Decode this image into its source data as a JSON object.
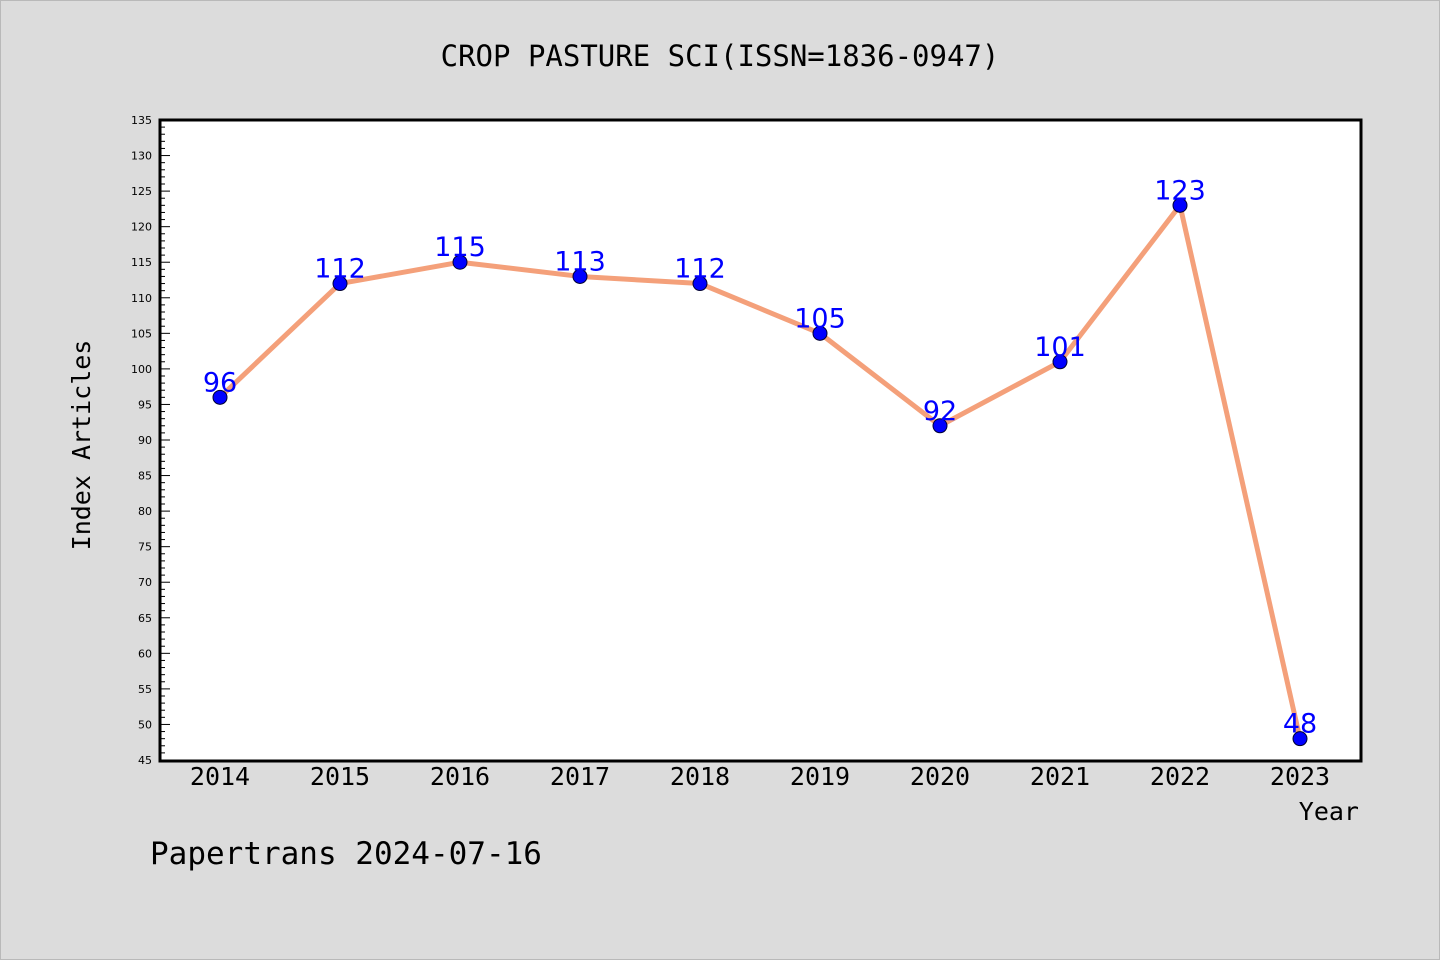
{
  "chart_data": {
    "type": "line",
    "title": "CROP PASTURE SCI(ISSN=1836-0947)",
    "xlabel": "Year",
    "ylabel": "Index Articles",
    "categories": [
      "2014",
      "2015",
      "2016",
      "2017",
      "2018",
      "2019",
      "2020",
      "2021",
      "2022",
      "2023"
    ],
    "series": [
      {
        "values": [
          96,
          112,
          115,
          113,
          112,
          105,
          92,
          101,
          123,
          48
        ]
      }
    ],
    "ylim": [
      45,
      135
    ],
    "ytick_step": 5,
    "grid": false,
    "legend": "none",
    "line_color": "#f4a07a",
    "marker_color": "#0000ff",
    "label_color": "#0000ff"
  },
  "footer": "Papertrans 2024-07-16"
}
